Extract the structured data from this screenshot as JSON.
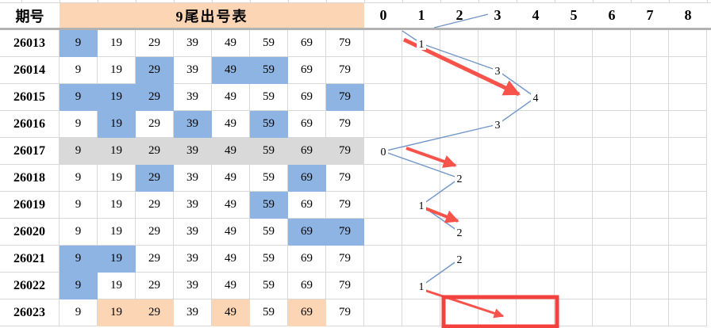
{
  "table": {
    "period_label": "期号",
    "title": "9尾出号表",
    "columns": [
      "9",
      "19",
      "29",
      "39",
      "49",
      "59",
      "69",
      "79"
    ],
    "rows": [
      {
        "period": "26013",
        "blue": [
          "9"
        ]
      },
      {
        "period": "26014",
        "blue": [
          "29",
          "49",
          "59"
        ]
      },
      {
        "period": "26015",
        "blue": [
          "9",
          "19",
          "29",
          "79"
        ]
      },
      {
        "period": "26016",
        "blue": [
          "19",
          "39",
          "59"
        ]
      },
      {
        "period": "26017",
        "gray_row": true
      },
      {
        "period": "26018",
        "blue": [
          "29",
          "69"
        ]
      },
      {
        "period": "26019",
        "blue": [
          "59"
        ]
      },
      {
        "period": "26020",
        "blue": [
          "69",
          "79"
        ]
      },
      {
        "period": "26021",
        "blue": [
          "9",
          "19"
        ]
      },
      {
        "period": "26022",
        "blue": [
          "9"
        ]
      },
      {
        "period": "26023",
        "peach": [
          "19",
          "29",
          "49",
          "69"
        ]
      }
    ]
  },
  "chart_data": {
    "type": "line",
    "title": "9尾出号表",
    "x_categories": [
      "0",
      "1",
      "2",
      "3",
      "4",
      "5",
      "6",
      "7",
      "8"
    ],
    "row_labels": [
      "26013",
      "26014",
      "26015",
      "26016",
      "26017",
      "26018",
      "26019",
      "26020",
      "26021",
      "26022",
      "26023"
    ],
    "values": [
      1,
      3,
      4,
      3,
      0,
      2,
      1,
      2,
      2,
      1,
      null
    ],
    "segments": [
      [
        0,
        1
      ],
      [
        1,
        2
      ],
      [
        2,
        3
      ],
      [
        3,
        4
      ],
      [
        4,
        5
      ],
      [
        5,
        6
      ],
      [
        6,
        7
      ],
      [
        8,
        9
      ]
    ],
    "stray_segments": [
      [
        507,
        39,
        531,
        55
      ],
      [
        547,
        35,
        615,
        18
      ]
    ],
    "red_arrows": [
      [
        509,
        50,
        654,
        119,
        5
      ],
      [
        512,
        187,
        574,
        209,
        4
      ],
      [
        536,
        263,
        577,
        279,
        4
      ],
      [
        534,
        366,
        634,
        399,
        3
      ]
    ],
    "red_rect": {
      "x": 559,
      "y": 375,
      "w": 143,
      "h": 37
    },
    "xlim": [
      0,
      8
    ],
    "grid": true,
    "colors": {
      "line": "#7195c8",
      "arrow": "#f8534a",
      "rect": "#f5413d",
      "cell_blue": "#8db4e2",
      "cell_peach": "#fcd5b4",
      "row_gray": "#d9d9d9",
      "gridline": "#d8d8d8"
    }
  }
}
